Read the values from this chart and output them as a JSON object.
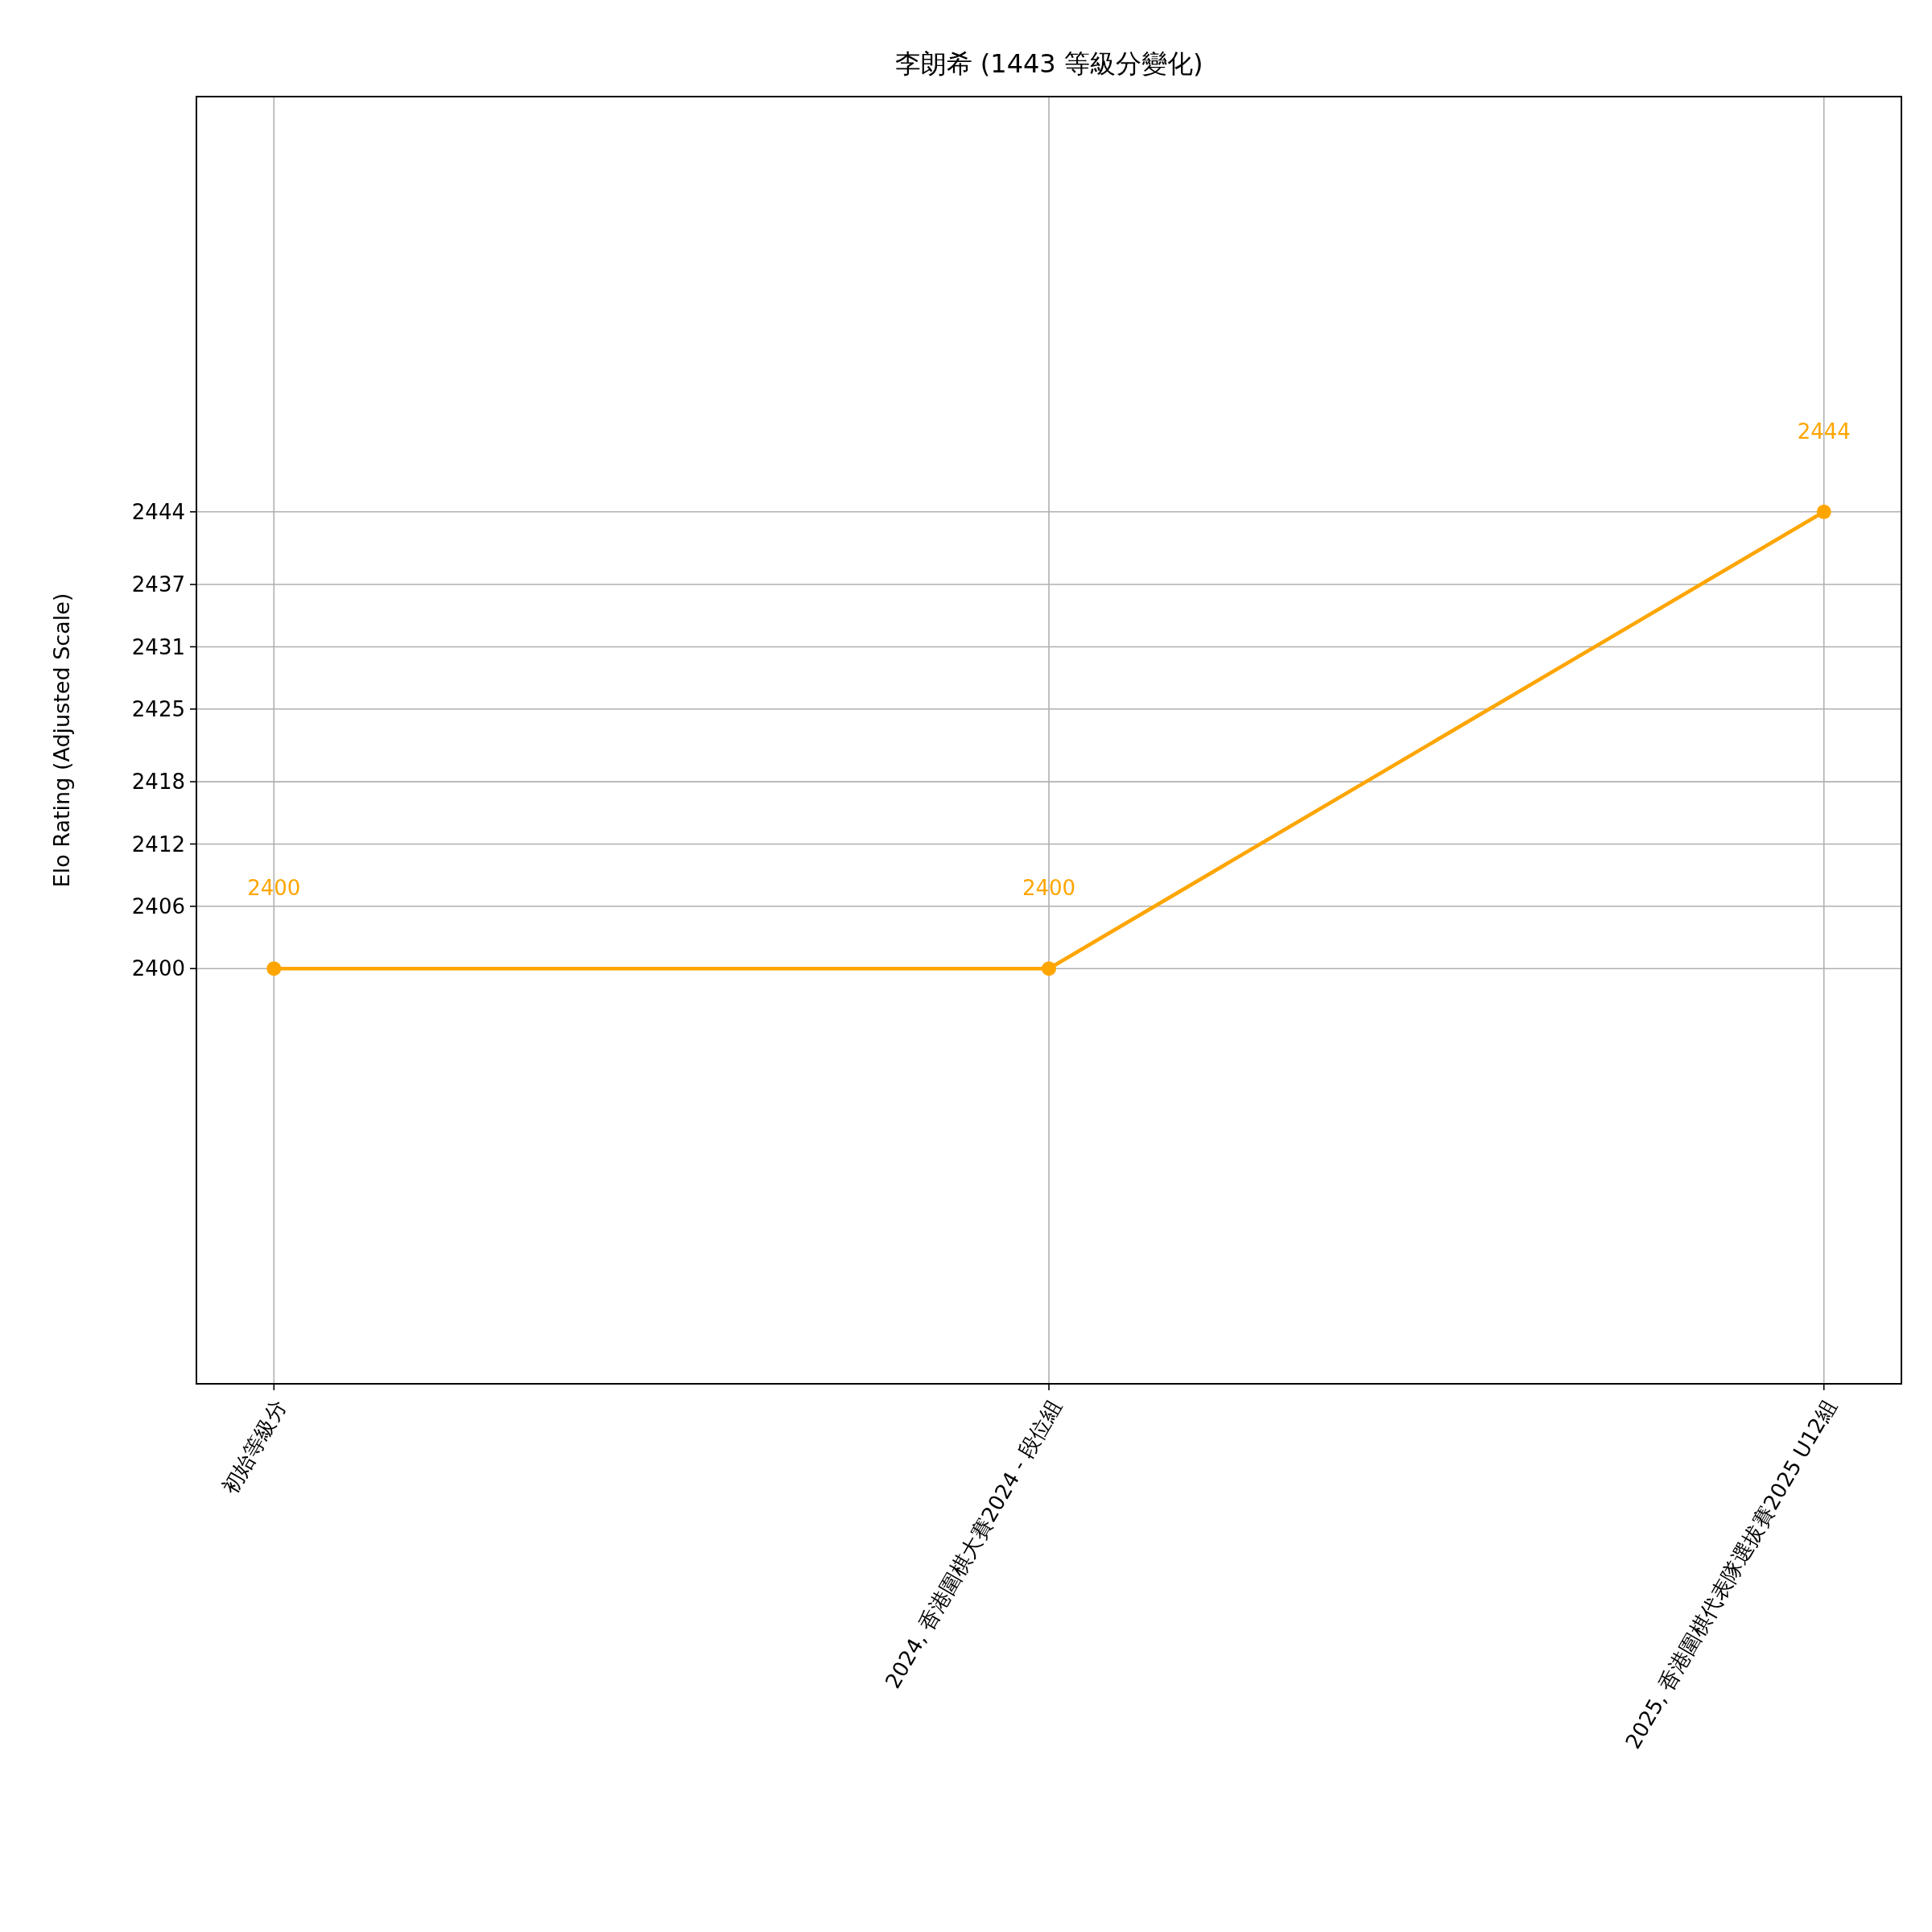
{
  "chart_data": {
    "type": "line",
    "title": "李朗希 (1443 等級分變化)",
    "ylabel": "Elo Rating (Adjusted Scale)",
    "categories": [
      "初始等級分",
      "2024, 香港圍棋大賽2024 - 段位組",
      "2025, 香港圍棋代表隊選拔賽2025 U12組"
    ],
    "series": [
      {
        "color": "#ffa500",
        "values": [
          2400,
          2400,
          2444
        ]
      }
    ],
    "ylim": [
      2360,
      2484
    ],
    "yticks": [
      2400,
      2406,
      2412,
      2418,
      2425,
      2431,
      2437,
      2444
    ],
    "grid": true,
    "marker": "circle",
    "line_style": "solid",
    "annotations": [
      "2400",
      "2400",
      "2444"
    ]
  }
}
